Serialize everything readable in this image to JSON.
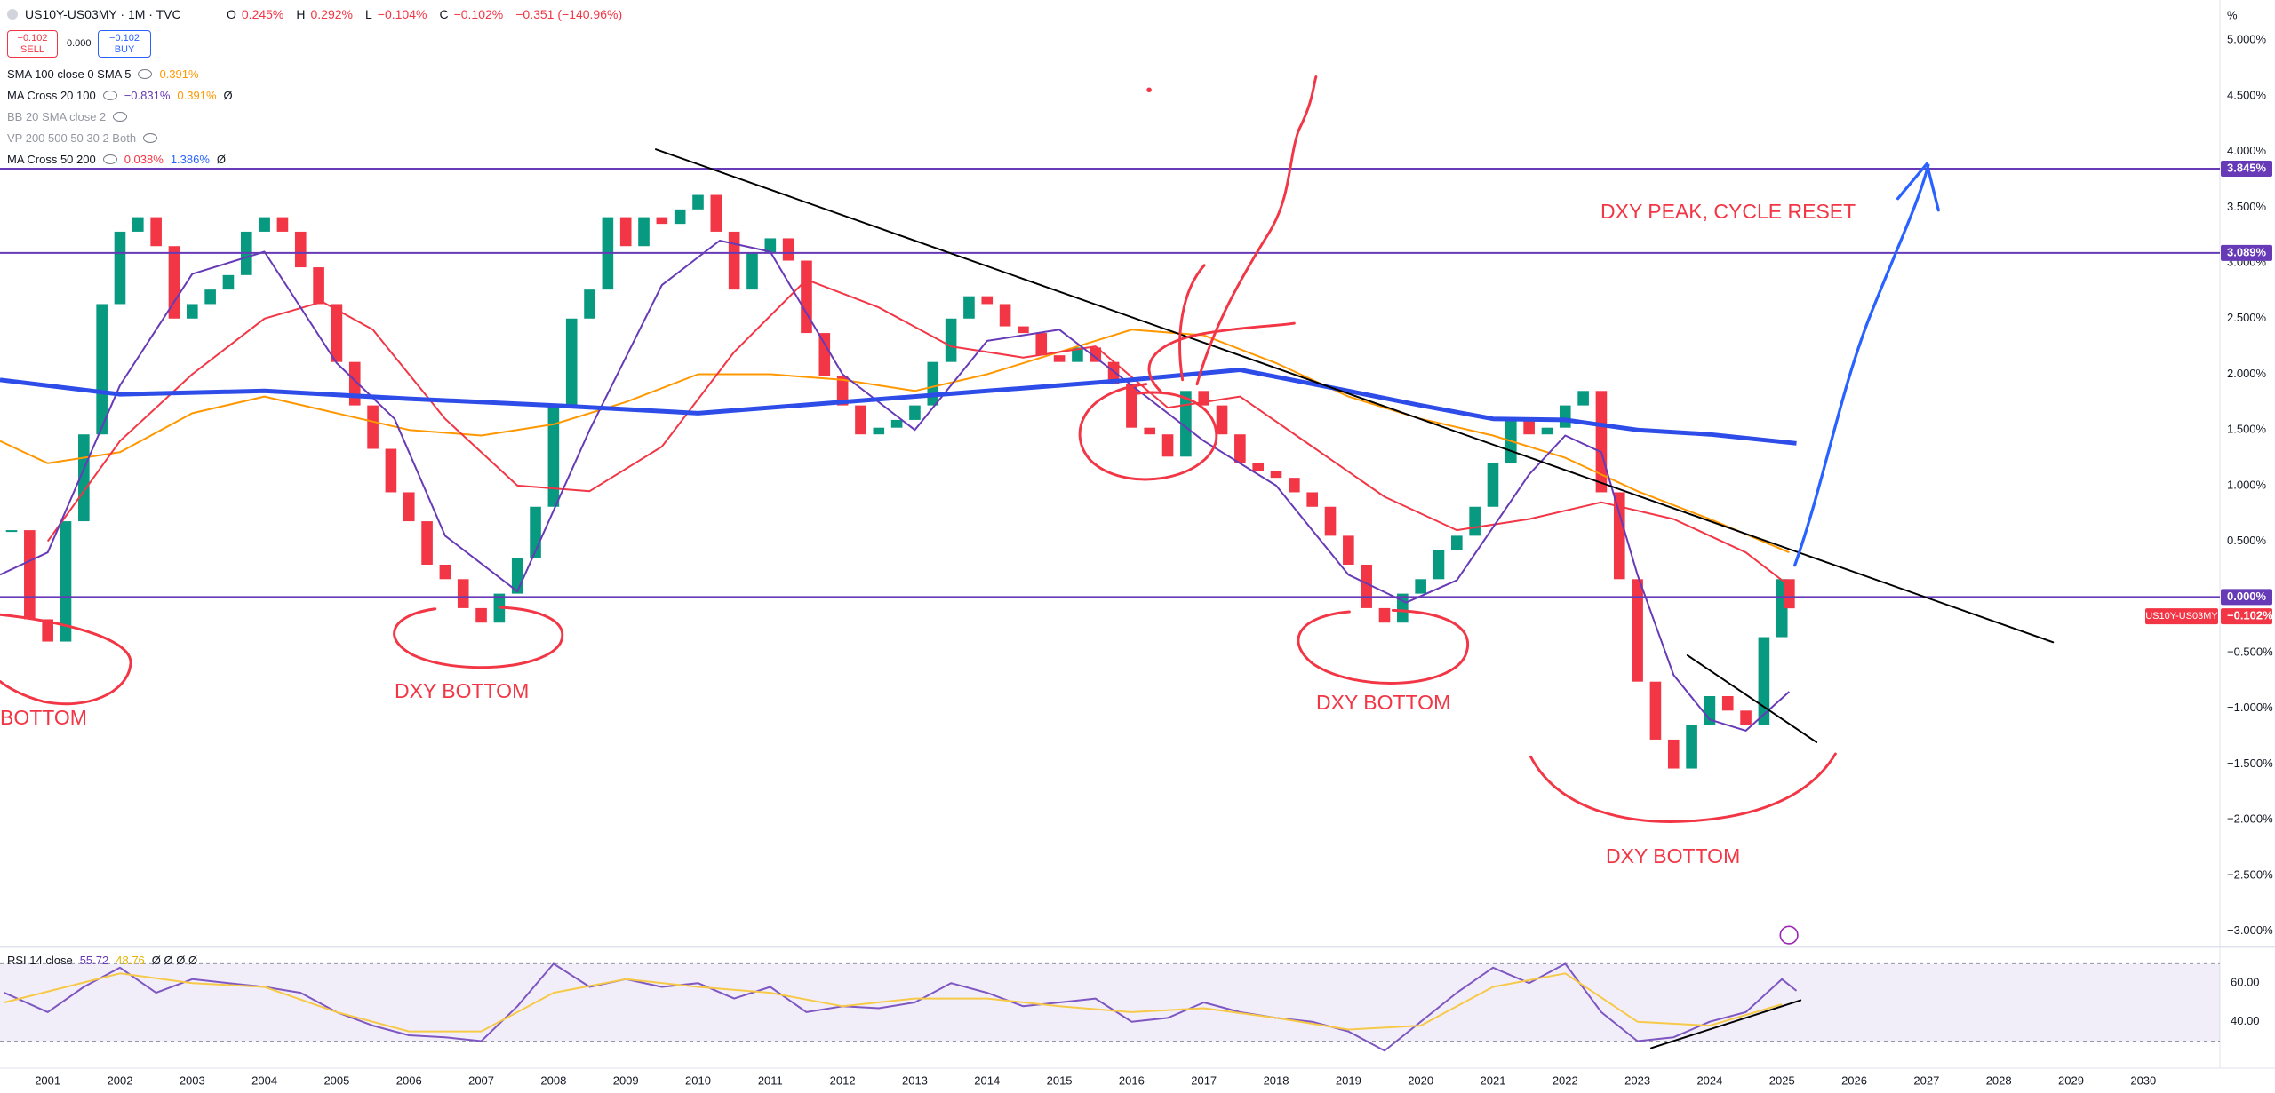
{
  "header": {
    "symbol": "US10Y-US03MY · 1M · TVC",
    "ohlc": [
      {
        "key": "O",
        "value": "0.245%"
      },
      {
        "key": "H",
        "value": "0.292%"
      },
      {
        "key": "L",
        "value": "−0.104%"
      },
      {
        "key": "C",
        "value": "−0.102%"
      }
    ],
    "change": "−0.351 (−140.96%)",
    "sell": {
      "price": "−0.102",
      "label": "SELL"
    },
    "spread": "0.000",
    "buy": {
      "price": "−0.102",
      "label": "BUY"
    }
  },
  "indicators": [
    {
      "name": "SMA 100 close 0 SMA 5",
      "values": [
        "0.391%"
      ]
    },
    {
      "name": "MA Cross 20 100",
      "values": [
        "−0.831%",
        "0.391%",
        "Ø"
      ]
    },
    {
      "name": "BB 20 SMA close 2"
    },
    {
      "name": "VP 200 500 50 30 2 Both"
    },
    {
      "name": "MA Cross 50 200",
      "values": [
        "0.038%",
        "1.386%",
        "Ø"
      ]
    }
  ],
  "annotations": [
    "BOTTOM",
    "DXY BOTTOM",
    "DXY BOTTOM",
    "DXY BOTTOM",
    "DXY PEAK, CYCLE RESET"
  ],
  "chart_data": [
    {
      "type": "candlestick",
      "unit": "%",
      "x": [
        2000.5,
        2000.75,
        2001,
        2001.25,
        2001.5,
        2001.75,
        2002,
        2002.25,
        2002.5,
        2002.75,
        2003,
        2003.25,
        2003.5,
        2003.75,
        2004,
        2004.25,
        2004.5,
        2004.75,
        2005,
        2005.25,
        2005.5,
        2005.75,
        2006,
        2006.25,
        2006.5,
        2006.75,
        2007,
        2007.25,
        2007.5,
        2007.75,
        2008,
        2008.25,
        2008.5,
        2008.75,
        2009,
        2009.25,
        2009.5,
        2009.75,
        2010,
        2010.25,
        2010.5,
        2010.75,
        2011,
        2011.25,
        2011.5,
        2011.75,
        2012,
        2012.25,
        2012.5,
        2012.75,
        2013,
        2013.25,
        2013.5,
        2013.75,
        2014,
        2014.25,
        2014.5,
        2014.75,
        2015,
        2015.25,
        2015.5,
        2015.75,
        2016,
        2016.25,
        2016.5,
        2016.75,
        2017,
        2017.25,
        2017.5,
        2017.75,
        2018,
        2018.25,
        2018.5,
        2018.75,
        2019,
        2019.25,
        2019.5,
        2019.75,
        2020,
        2020.25,
        2020.5,
        2020.75,
        2021,
        2021.25,
        2021.5,
        2021.75,
        2022,
        2022.25,
        2022.5,
        2022.75,
        2023,
        2023.25,
        2023.5,
        2023.75,
        2024,
        2024.25,
        2024.5,
        2024.75,
        2025,
        2025.1
      ],
      "series": [
        {
          "name": "US10Y-US03MY",
          "up_color": "#089981",
          "down_color": "#f23645",
          "values": [
            0.6,
            -0.2,
            -0.4,
            0.68,
            1.46,
            2.63,
            3.28,
            3.41,
            3.15,
            2.5,
            2.63,
            2.76,
            2.89,
            3.28,
            3.41,
            3.28,
            2.96,
            2.63,
            2.11,
            1.72,
            1.33,
            0.94,
            0.68,
            0.29,
            0.16,
            -0.1,
            -0.23,
            0.03,
            0.35,
            0.81,
            1.72,
            2.5,
            2.76,
            3.41,
            3.15,
            3.41,
            3.35,
            3.48,
            3.61,
            3.28,
            2.76,
            3.09,
            3.22,
            3.02,
            2.37,
            1.98,
            1.72,
            1.46,
            1.52,
            1.59,
            1.72,
            2.11,
            2.5,
            2.7,
            2.63,
            2.43,
            2.37,
            2.17,
            2.11,
            2.24,
            2.11,
            1.91,
            1.52,
            1.46,
            1.26,
            1.85,
            1.72,
            1.46,
            1.2,
            1.13,
            1.07,
            0.94,
            0.81,
            0.55,
            0.29,
            -0.1,
            -0.23,
            0.03,
            0.16,
            0.42,
            0.55,
            0.81,
            1.2,
            1.59,
            1.46,
            1.52,
            1.72,
            1.85,
            0.94,
            0.16,
            -0.76,
            -1.28,
            -1.54,
            -1.15,
            -0.89,
            -1.02,
            -1.15,
            -0.36,
            0.16,
            -0.102
          ]
        }
      ],
      "overlays": [
        {
          "color": "#ff9800",
          "width": 2,
          "x": [
            2000.34,
            2001,
            2002,
            2003,
            2004,
            2005,
            2006,
            2007,
            2008,
            2009,
            2010,
            2011,
            2012,
            2013,
            2014,
            2015,
            2016,
            2017,
            2018,
            2019,
            2020,
            2021,
            2022,
            2023,
            2024,
            2025.1
          ],
          "values": [
            1.4,
            1.2,
            1.3,
            1.65,
            1.8,
            1.65,
            1.5,
            1.45,
            1.55,
            1.75,
            2.0,
            2.0,
            1.95,
            1.85,
            2.0,
            2.2,
            2.4,
            2.35,
            2.1,
            1.8,
            1.6,
            1.45,
            1.25,
            0.95,
            0.7,
            0.4
          ]
        },
        {
          "color": "#f23645",
          "width": 2,
          "x": [
            2001,
            2002,
            2003,
            2004,
            2004.8,
            2005.5,
            2006.5,
            2007.5,
            2008.5,
            2009.5,
            2010.5,
            2011.5,
            2012.5,
            2013.5,
            2014.5,
            2015.5,
            2016.5,
            2017.5,
            2018.5,
            2019.5,
            2020.5,
            2021.5,
            2022.5,
            2023.5,
            2024.5,
            2025.1
          ],
          "values": [
            0.5,
            1.4,
            2.0,
            2.5,
            2.65,
            2.4,
            1.6,
            1.0,
            0.95,
            1.35,
            2.2,
            2.85,
            2.6,
            2.25,
            2.15,
            2.25,
            1.7,
            1.8,
            1.35,
            0.9,
            0.6,
            0.7,
            0.85,
            0.7,
            0.4,
            0.1
          ]
        },
        {
          "color": "#673ab7",
          "width": 2,
          "x": [
            2000.34,
            2001,
            2002,
            2003,
            2004,
            2005,
            2005.8,
            2006.5,
            2007.5,
            2008.5,
            2009.5,
            2010.3,
            2011,
            2012,
            2013,
            2014,
            2015,
            2016,
            2017,
            2018,
            2019,
            2019.8,
            2020.5,
            2021.5,
            2022,
            2022.5,
            2023,
            2023.5,
            2024,
            2024.5,
            2025.1
          ],
          "values": [
            0.2,
            0.4,
            1.9,
            2.9,
            3.1,
            2.1,
            1.6,
            0.55,
            0.05,
            1.5,
            2.8,
            3.2,
            3.1,
            2.0,
            1.5,
            2.3,
            2.4,
            1.9,
            1.4,
            1.0,
            0.2,
            -0.05,
            0.15,
            1.1,
            1.45,
            1.3,
            0.2,
            -0.7,
            -1.1,
            -1.2,
            -0.85
          ]
        },
        {
          "color": "#2e4de8",
          "width": 5,
          "x": [
            2000.34,
            2002,
            2004,
            2006,
            2008,
            2010,
            2012,
            2014,
            2016,
            2017.5,
            2019,
            2020,
            2021,
            2022,
            2023,
            2024,
            2025.2
          ],
          "values": [
            1.95,
            1.82,
            1.85,
            1.78,
            1.72,
            1.65,
            1.75,
            1.85,
            1.95,
            2.04,
            1.85,
            1.72,
            1.6,
            1.59,
            1.5,
            1.46,
            1.38
          ]
        }
      ],
      "levels": [
        {
          "value": 3.845,
          "label": "3.845%",
          "color": "#673ab7"
        },
        {
          "value": 3.089,
          "label": "3.089%",
          "color": "#673ab7"
        },
        {
          "value": 0,
          "label": "0.000%",
          "color": "#673ab7"
        }
      ],
      "price_label": {
        "value": -0.102,
        "label": "−0.102%",
        "color": "#f23645"
      },
      "xlim": [
        2000.34,
        2031.06
      ],
      "xticks": [
        2001,
        2002,
        2003,
        2004,
        2005,
        2006,
        2007,
        2008,
        2009,
        2010,
        2011,
        2012,
        2013,
        2014,
        2015,
        2016,
        2017,
        2018,
        2019,
        2020,
        2021,
        2022,
        2023,
        2024,
        2025,
        2026,
        2027,
        2028,
        2029,
        2030
      ],
      "ylim": [
        -3.13,
        5.36
      ],
      "yticks": [
        {
          "value": 5,
          "label": "5.000%"
        },
        {
          "value": 4.5,
          "label": "4.500%"
        },
        {
          "value": 4,
          "label": "4.000%"
        },
        {
          "value": 3.5,
          "label": "3.500%"
        },
        {
          "value": 3,
          "label": "3.000%"
        },
        {
          "value": 2.5,
          "label": "2.500%"
        },
        {
          "value": 2,
          "label": "2.000%"
        },
        {
          "value": 1.5,
          "label": "1.500%"
        },
        {
          "value": 1,
          "label": "1.000%"
        },
        {
          "value": 0.5,
          "label": "0.500%"
        },
        {
          "value": -0.5,
          "label": "−0.500%"
        },
        {
          "value": -1,
          "label": "−1.000%"
        },
        {
          "value": -1.5,
          "label": "−1.500%"
        },
        {
          "value": -2,
          "label": "−2.000%"
        },
        {
          "value": -2.5,
          "label": "−2.500%"
        },
        {
          "value": -3,
          "label": "−3.000%"
        }
      ],
      "grid": false
    },
    {
      "type": "line",
      "title": "RSI 14 close",
      "readouts": [
        "55.72",
        "48.76"
      ],
      "flags": "Ø Ø Ø Ø",
      "series": [
        {
          "color": "#7e57c2",
          "x": [
            2000.4,
            2001,
            2001.5,
            2002,
            2002.5,
            2003,
            2003.5,
            2004,
            2004.5,
            2005,
            2005.5,
            2006,
            2006.5,
            2007,
            2007.5,
            2008,
            2008.5,
            2009,
            2009.5,
            2010,
            2010.5,
            2011,
            2011.5,
            2012,
            2012.5,
            2013,
            2013.5,
            2014,
            2014.5,
            2015,
            2015.5,
            2016,
            2016.5,
            2017,
            2017.5,
            2018,
            2018.5,
            2019,
            2019.5,
            2020,
            2020.5,
            2021,
            2021.5,
            2022,
            2022.5,
            2023,
            2023.5,
            2024,
            2024.5,
            2025,
            2025.2
          ],
          "values": [
            55,
            45,
            58,
            68,
            55,
            62,
            60,
            58,
            55,
            45,
            38,
            33,
            32,
            30,
            48,
            70,
            58,
            62,
            58,
            60,
            52,
            58,
            45,
            48,
            47,
            50,
            60,
            55,
            48,
            50,
            52,
            40,
            42,
            50,
            45,
            42,
            40,
            35,
            25,
            40,
            55,
            68,
            60,
            70,
            45,
            30,
            32,
            40,
            45,
            62,
            56
          ]
        },
        {
          "color": "#f7c948",
          "x": [
            2000.4,
            2002,
            2003,
            2004,
            2005,
            2006,
            2007,
            2008,
            2009,
            2010,
            2011,
            2012,
            2013,
            2014,
            2015,
            2016,
            2017,
            2018,
            2019,
            2020,
            2021,
            2022,
            2023,
            2024,
            2025
          ],
          "values": [
            50,
            65,
            60,
            58,
            45,
            35,
            35,
            55,
            62,
            58,
            55,
            48,
            52,
            52,
            48,
            45,
            47,
            42,
            36,
            38,
            58,
            65,
            40,
            38,
            49
          ]
        }
      ],
      "band": [
        30,
        70
      ],
      "ylim": [
        16,
        78
      ],
      "yticks": [
        {
          "value": 60,
          "label": "60.00"
        },
        {
          "value": 40,
          "label": "40.00"
        }
      ]
    }
  ]
}
